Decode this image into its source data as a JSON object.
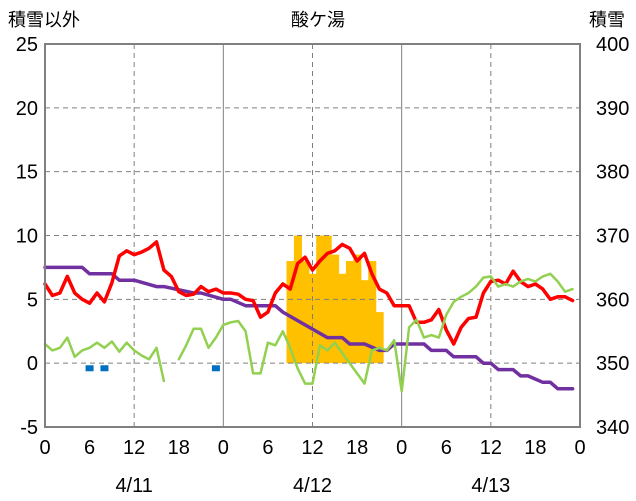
{
  "chart_data": {
    "type": "line",
    "title": "酸ケ湯",
    "ylabel_left": "積雪以外",
    "ylabel_right": "積雪",
    "ylim_left": [
      -5,
      25
    ],
    "ylim_right": [
      340,
      400
    ],
    "yticks_left": [
      "25",
      "20",
      "15",
      "10",
      "5",
      "0",
      "-5"
    ],
    "yticks_right": [
      "400",
      "390",
      "380",
      "370",
      "360",
      "350",
      "340"
    ],
    "x_hour_ticks": [
      "0",
      "6",
      "12",
      "18",
      "0",
      "6",
      "12",
      "18",
      "0",
      "6",
      "12",
      "18",
      "0"
    ],
    "x_date_labels": [
      {
        "label": "4/11",
        "at_hour": 12
      },
      {
        "label": "4/12",
        "at_hour": 36
      },
      {
        "label": "4/13",
        "at_hour": 60
      }
    ],
    "x_range_hours": [
      0,
      72
    ],
    "grid": true,
    "colors": {
      "snow_depth": "#7030a0",
      "temperature": "#ff0000",
      "wind": "#92d050",
      "precip": "#ffc000",
      "sunshine": "#0070c0",
      "grid": "#808080"
    },
    "series": [
      {
        "name": "",
        "axis": "right",
        "color": "#7030a0",
        "kind": "line",
        "x": [
          0,
          5,
          6,
          9,
          10,
          12,
          15,
          16,
          20,
          21,
          24,
          25,
          27,
          31,
          32,
          35,
          38,
          40,
          41,
          43,
          45,
          46,
          47,
          51,
          52,
          54,
          55,
          58,
          59,
          60,
          61,
          63,
          64,
          65,
          67,
          68,
          69,
          70,
          71
        ],
        "y": [
          365,
          365,
          364,
          364,
          363,
          363,
          362,
          362,
          361,
          361,
          360,
          360,
          359,
          359,
          358,
          356,
          354,
          354,
          353,
          353,
          352,
          352,
          353,
          353,
          352,
          352,
          351,
          351,
          350,
          350,
          349,
          349,
          348,
          348,
          347,
          347,
          346,
          346,
          346
        ]
      },
      {
        "name": "",
        "axis": "left",
        "color": "#ff0000",
        "kind": "line",
        "x": [
          0,
          1,
          2,
          3,
          4,
          5,
          6,
          7,
          8,
          9,
          10,
          11,
          12,
          13,
          14,
          15,
          16,
          17,
          18,
          19,
          20,
          21,
          22,
          23,
          24,
          25,
          26,
          27,
          28,
          29,
          30,
          31,
          32,
          33,
          34,
          35,
          36,
          37,
          38,
          39,
          40,
          41,
          42,
          43,
          44,
          45,
          46,
          47,
          48,
          49,
          50,
          51,
          52,
          53,
          54,
          55,
          56,
          57,
          58,
          59,
          60,
          61,
          62,
          63,
          64,
          65,
          66,
          67,
          68,
          69,
          70,
          71
        ],
        "y": [
          6.2,
          5.3,
          5.5,
          6.8,
          5.5,
          5.0,
          4.7,
          5.5,
          4.8,
          6.3,
          8.4,
          8.8,
          8.5,
          8.7,
          9.0,
          9.5,
          7.3,
          6.8,
          5.6,
          5.3,
          5.4,
          6.0,
          5.6,
          5.8,
          5.5,
          5.5,
          5.4,
          5.0,
          4.9,
          3.6,
          4.0,
          5.5,
          6.2,
          5.8,
          7.8,
          8.3,
          7.3,
          8.0,
          8.6,
          8.8,
          9.3,
          9.0,
          8.0,
          8.6,
          7.0,
          5.8,
          5.5,
          4.5,
          4.5,
          4.5,
          3.2,
          3.2,
          3.4,
          4.2,
          2.6,
          1.5,
          2.8,
          3.5,
          3.6,
          5.5,
          6.4,
          6.5,
          6.2,
          7.2,
          6.4,
          6.0,
          6.2,
          5.8,
          5.0,
          5.2,
          5.2,
          4.9
        ]
      },
      {
        "name": "",
        "axis": "left",
        "color": "#92d050",
        "kind": "line",
        "x": [
          0,
          1,
          2,
          3,
          4,
          5,
          6,
          7,
          8,
          9,
          10,
          11,
          12,
          13,
          14,
          15,
          16,
          null,
          18,
          19,
          20,
          21,
          22,
          23,
          24,
          25,
          26,
          27,
          28,
          29,
          30,
          31,
          32,
          33,
          34,
          35,
          36,
          37,
          38,
          39,
          40,
          41,
          42,
          43,
          44,
          45,
          46,
          47,
          48,
          49,
          50,
          51,
          52,
          53,
          54,
          55,
          56,
          57,
          58,
          59,
          60,
          61,
          62,
          63,
          64,
          65,
          66,
          67,
          68,
          69,
          70,
          71
        ],
        "y": [
          1.5,
          1.0,
          1.2,
          2.0,
          0.5,
          1.0,
          1.2,
          1.6,
          1.2,
          1.7,
          0.9,
          1.6,
          1.0,
          0.6,
          0.3,
          1.2,
          -1.4,
          null,
          0.3,
          1.4,
          2.7,
          2.7,
          1.2,
          2.0,
          3.0,
          3.2,
          3.3,
          2.5,
          -0.8,
          -0.8,
          1.6,
          1.4,
          2.5,
          1.2,
          -0.4,
          -1.6,
          -1.6,
          1.4,
          1.0,
          1.6,
          0.8,
          0.0,
          -0.8,
          -1.6,
          1.0,
          1.2,
          1.0,
          1.8,
          -2.2,
          2.8,
          3.4,
          2.0,
          2.2,
          2.0,
          3.8,
          4.8,
          5.2,
          5.5,
          6.0,
          6.7,
          6.8,
          6.0,
          6.2,
          6.0,
          6.4,
          6.6,
          6.4,
          6.8,
          7.0,
          6.4,
          5.6,
          5.8
        ]
      },
      {
        "name": "",
        "axis": "left",
        "color": "#ffc000",
        "kind": "bar",
        "x": [
          33,
          34,
          35,
          36,
          37,
          38,
          39,
          40,
          41,
          42,
          43,
          44,
          45
        ],
        "y": [
          8.0,
          10.0,
          8.0,
          7.0,
          10.0,
          10.0,
          8.5,
          7.0,
          8.0,
          8.5,
          6.5,
          8.0,
          4.0
        ]
      },
      {
        "name": "",
        "axis": "left",
        "color": "#0070c0",
        "kind": "marker",
        "x": [
          6,
          8,
          23
        ],
        "y": [
          -0.4,
          -0.4,
          -0.4
        ]
      }
    ]
  }
}
